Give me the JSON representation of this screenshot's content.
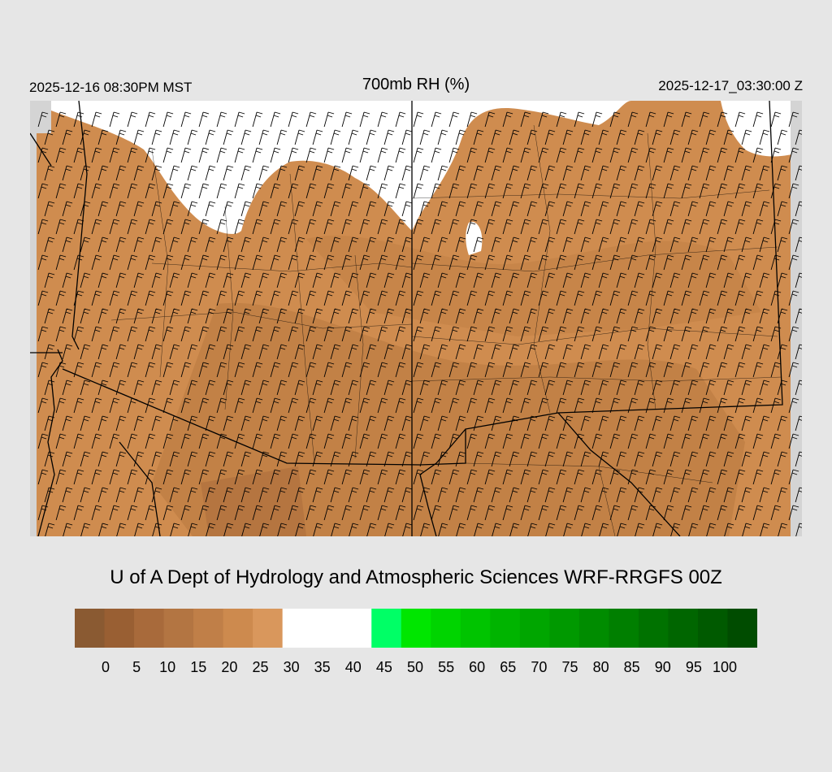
{
  "header": {
    "left": "2025-12-16 08:30PM MST",
    "title": "700mb RH (%)",
    "right": "2025-12-17_03:30:00 Z"
  },
  "credit": "U of A Dept of Hydrology and Atmospheric Sciences WRF-RRGFS 00Z",
  "colors": {
    "background": "#e6e6e6",
    "map_edge": "#d4d4d4",
    "dry_field": "#cf8c4f",
    "dry_dark": "#b0723d",
    "moist_white": "#ffffff",
    "line": "#000000"
  },
  "colorbar": {
    "colors": [
      "#8a5a32",
      "#995f33",
      "#a86a3b",
      "#b37542",
      "#c07f48",
      "#cd8a4e",
      "#d9975c",
      "#ffffff",
      "#ffffff",
      "#ffffff",
      "#00ff66",
      "#00e600",
      "#00d400",
      "#00c400",
      "#00b400",
      "#00a600",
      "#009900",
      "#008c00",
      "#007f00",
      "#007200",
      "#006600",
      "#005a00",
      "#004c00"
    ],
    "tick_labels": [
      "0",
      "5",
      "10",
      "15",
      "20",
      "25",
      "30",
      "35",
      "40",
      "45",
      "50",
      "55",
      "60",
      "65",
      "70",
      "75",
      "80",
      "85",
      "90",
      "95",
      "100"
    ]
  }
}
